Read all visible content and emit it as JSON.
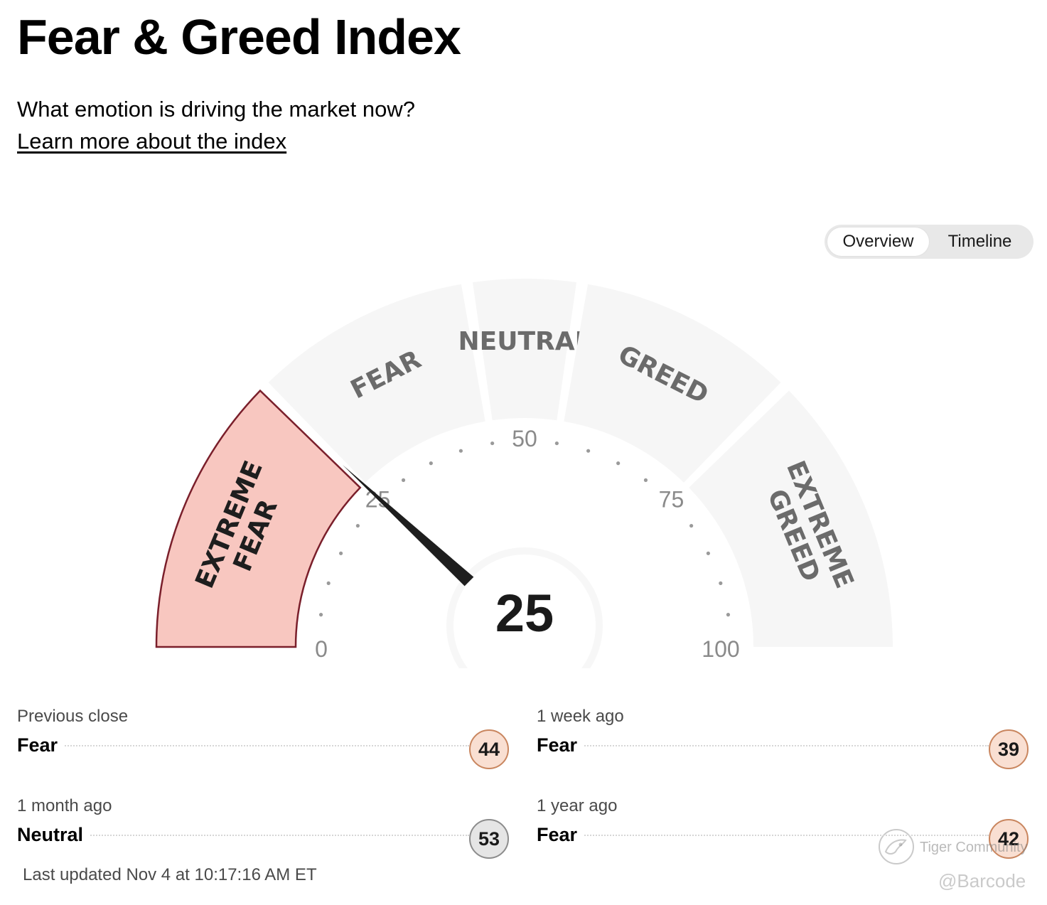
{
  "header": {
    "title": "Fear & Greed Index",
    "subtitle": "What emotion is driving the market now?",
    "learn_more_link": "Learn more about the index"
  },
  "view_toggle": {
    "options": [
      "Overview",
      "Timeline"
    ],
    "selected": "Overview"
  },
  "gauge": {
    "value": 25,
    "value_label": "25",
    "scale_min": 0,
    "scale_max": 100,
    "tick_labels": [
      "0",
      "25",
      "50",
      "75",
      "100"
    ],
    "active_segment": "EXTREME FEAR",
    "segments": [
      {
        "lines": [
          "EXTREME",
          "FEAR"
        ],
        "from": 0,
        "to": 25
      },
      {
        "lines": [
          "FEAR"
        ],
        "from": 25,
        "to": 45
      },
      {
        "lines": [
          "NEUTRAL"
        ],
        "from": 45,
        "to": 55
      },
      {
        "lines": [
          "GREED"
        ],
        "from": 55,
        "to": 75
      },
      {
        "lines": [
          "EXTREME",
          "GREED"
        ],
        "from": 75,
        "to": 100
      }
    ],
    "colors": {
      "active_fill": "#f8c7c0",
      "active_stroke": "#7a1f2b",
      "inactive_fill": "#f6f6f6",
      "needle": "#1e1e1e",
      "segment_text": "#6b6b6b",
      "active_text": "#1e1e1e",
      "tick_text": "#8a8a8a"
    }
  },
  "history": [
    {
      "label": "Previous close",
      "rating": "Fear",
      "value": "44",
      "tone": "fear"
    },
    {
      "label": "1 week ago",
      "rating": "Fear",
      "value": "39",
      "tone": "fear"
    },
    {
      "label": "1 month ago",
      "rating": "Neutral",
      "value": "53",
      "tone": "neutral"
    },
    {
      "label": "1 year ago",
      "rating": "Fear",
      "value": "42",
      "tone": "fear"
    }
  ],
  "last_updated": "Last updated Nov 4 at 10:17:16 AM ET",
  "watermark": {
    "brand": "Tiger Community",
    "handle": "@Barcode"
  }
}
